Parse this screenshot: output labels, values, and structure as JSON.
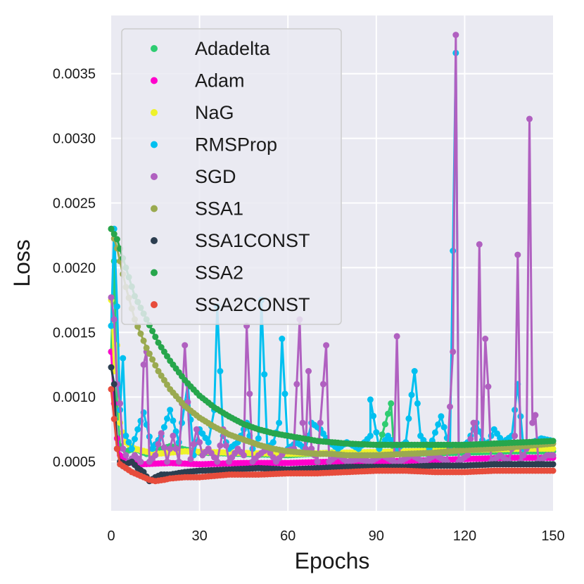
{
  "chart_data": {
    "type": "line",
    "title": "",
    "xlabel": "Epochs",
    "ylabel": "Loss",
    "xlim": [
      0,
      150
    ],
    "ylim": [
      0.00012,
      0.00395
    ],
    "x_ticks": [
      0,
      30,
      60,
      90,
      120,
      150
    ],
    "x_tick_labels": [
      "0",
      "30",
      "60",
      "90",
      "120",
      "150"
    ],
    "y_ticks": [
      0.0005,
      0.001,
      0.0015,
      0.002,
      0.0025,
      0.003,
      0.0035
    ],
    "y_tick_labels": [
      "0.0005",
      "0.0010",
      "0.0015",
      "0.0020",
      "0.0025",
      "0.0030",
      "0.0035"
    ],
    "grid": true,
    "legend_position": "top-left",
    "markers": "circle",
    "series": [
      {
        "name": "Adadelta",
        "color": "#2ecc71",
        "values": [
          [
            0,
            0.00135
          ],
          [
            1,
            0.00205
          ],
          [
            2,
            0.00095
          ],
          [
            3,
            0.00062
          ],
          [
            5,
            0.00058
          ],
          [
            8,
            0.0006
          ],
          [
            12,
            0.00056
          ],
          [
            20,
            0.00062
          ],
          [
            30,
            0.00057
          ],
          [
            45,
            0.00056
          ],
          [
            60,
            0.00055
          ],
          [
            75,
            0.00057
          ],
          [
            90,
            0.00055
          ],
          [
            95,
            0.00095
          ],
          [
            96,
            0.0006
          ],
          [
            100,
            0.00056
          ],
          [
            120,
            0.00057
          ],
          [
            135,
            0.00058
          ],
          [
            150,
            0.00058
          ]
        ]
      },
      {
        "name": "Adam",
        "color": "#ff00cc",
        "values": [
          [
            0,
            0.00135
          ],
          [
            1,
            0.00095
          ],
          [
            2,
            0.00068
          ],
          [
            3,
            0.00055
          ],
          [
            5,
            0.0005
          ],
          [
            10,
            0.00048
          ],
          [
            20,
            0.00049
          ],
          [
            30,
            0.00048
          ],
          [
            45,
            0.00049
          ],
          [
            60,
            0.00049
          ],
          [
            75,
            0.0005
          ],
          [
            90,
            0.0005
          ],
          [
            105,
            0.00051
          ],
          [
            120,
            0.00052
          ],
          [
            135,
            0.00053
          ],
          [
            150,
            0.00053
          ]
        ]
      },
      {
        "name": "NaG",
        "color": "#eef22a",
        "values": [
          [
            0,
            0.00175
          ],
          [
            1,
            0.0012
          ],
          [
            2,
            0.0014
          ],
          [
            3,
            0.0008
          ],
          [
            5,
            0.00065
          ],
          [
            8,
            0.0006
          ],
          [
            15,
            0.00056
          ],
          [
            25,
            0.00058
          ],
          [
            40,
            0.00057
          ],
          [
            60,
            0.00056
          ],
          [
            80,
            0.00057
          ],
          [
            100,
            0.00058
          ],
          [
            120,
            0.00059
          ],
          [
            140,
            0.0006
          ],
          [
            150,
            0.0006
          ]
        ]
      },
      {
        "name": "RMSProp",
        "color": "#00c0f0",
        "values": [
          [
            0,
            0.00155
          ],
          [
            1,
            0.0023
          ],
          [
            2,
            0.0017
          ],
          [
            3,
            0.0009
          ],
          [
            4,
            0.0013
          ],
          [
            5,
            0.0007
          ],
          [
            7,
            0.0006
          ],
          [
            9,
            0.00075
          ],
          [
            11,
            0.00088
          ],
          [
            14,
            0.0006
          ],
          [
            17,
            0.0007
          ],
          [
            20,
            0.0009
          ],
          [
            23,
            0.00065
          ],
          [
            26,
            0.0011
          ],
          [
            28,
            0.00055
          ],
          [
            30,
            0.00075
          ],
          [
            33,
            0.00065
          ],
          [
            35,
            0.0009
          ],
          [
            36,
            0.0017
          ],
          [
            38,
            0.0007
          ],
          [
            40,
            0.0006
          ],
          [
            43,
            0.00065
          ],
          [
            46,
            0.0008
          ],
          [
            48,
            0.0006
          ],
          [
            50,
            0.00068
          ],
          [
            51,
            0.00175
          ],
          [
            53,
            0.0006
          ],
          [
            55,
            0.00065
          ],
          [
            57,
            0.0008
          ],
          [
            58,
            0.00145
          ],
          [
            60,
            0.0006
          ],
          [
            63,
            0.00065
          ],
          [
            66,
            0.0006
          ],
          [
            68,
            0.0008
          ],
          [
            71,
            0.00075
          ],
          [
            74,
            0.00065
          ],
          [
            77,
            0.0006
          ],
          [
            80,
            0.00065
          ],
          [
            84,
            0.0006
          ],
          [
            88,
            0.0007
          ],
          [
            88,
            0.00098
          ],
          [
            91,
            0.0006
          ],
          [
            94,
            0.0007
          ],
          [
            97,
            0.0006
          ],
          [
            100,
            0.00065
          ],
          [
            103,
            0.0012
          ],
          [
            105,
            0.0007
          ],
          [
            108,
            0.0006
          ],
          [
            112,
            0.00085
          ],
          [
            115,
            0.0006
          ],
          [
            117,
            0.00366
          ],
          [
            118,
            0.0006
          ],
          [
            121,
            0.00065
          ],
          [
            124,
            0.0008
          ],
          [
            127,
            0.0006
          ],
          [
            130,
            0.00075
          ],
          [
            133,
            0.00065
          ],
          [
            136,
            0.0007
          ],
          [
            138,
            0.0011
          ],
          [
            140,
            0.0006
          ],
          [
            143,
            0.00065
          ],
          [
            146,
            0.00068
          ],
          [
            150,
            0.00066
          ]
        ]
      },
      {
        "name": "SGD",
        "color": "#b060c0",
        "values": [
          [
            0,
            0.00177
          ],
          [
            1,
            0.0016
          ],
          [
            2,
            0.0011
          ],
          [
            3,
            0.00095
          ],
          [
            4,
            0.0006
          ],
          [
            6,
            0.0005
          ],
          [
            8,
            0.00055
          ],
          [
            10,
            0.0005
          ],
          [
            11,
            0.00125
          ],
          [
            12,
            0.00135
          ],
          [
            13,
            0.0005
          ],
          [
            15,
            0.00055
          ],
          [
            17,
            0.00072
          ],
          [
            19,
            0.0005
          ],
          [
            21,
            0.0007
          ],
          [
            23,
            0.0005
          ],
          [
            25,
            0.0014
          ],
          [
            27,
            0.00052
          ],
          [
            29,
            0.00075
          ],
          [
            31,
            0.00055
          ],
          [
            33,
            0.0006
          ],
          [
            36,
            0.0005
          ],
          [
            38,
            0.00075
          ],
          [
            40,
            0.0005
          ],
          [
            43,
            0.0006
          ],
          [
            45,
            0.00055
          ],
          [
            46,
            0.00155
          ],
          [
            48,
            0.0005
          ],
          [
            50,
            0.00055
          ],
          [
            53,
            0.0006
          ],
          [
            56,
            0.0005
          ],
          [
            59,
            0.00058
          ],
          [
            62,
            0.0006
          ],
          [
            63,
            0.0011
          ],
          [
            64,
            0.0016
          ],
          [
            65,
            0.0008
          ],
          [
            66,
            0.0006
          ],
          [
            67,
            0.0012
          ],
          [
            68,
            0.0006
          ],
          [
            70,
            0.0005
          ],
          [
            73,
            0.0014
          ],
          [
            74,
            0.0005
          ],
          [
            77,
            0.00055
          ],
          [
            80,
            0.0005
          ],
          [
            84,
            0.00052
          ],
          [
            88,
            0.0005
          ],
          [
            92,
            0.00055
          ],
          [
            96,
            0.0005
          ],
          [
            97,
            0.00147
          ],
          [
            98,
            0.0005
          ],
          [
            102,
            0.00055
          ],
          [
            106,
            0.0005
          ],
          [
            110,
            0.00055
          ],
          [
            114,
            0.0005
          ],
          [
            116,
            0.00135
          ],
          [
            117,
            0.0038
          ],
          [
            118,
            0.0005
          ],
          [
            121,
            0.00055
          ],
          [
            123,
            0.0008
          ],
          [
            124,
            0.0006
          ],
          [
            125,
            0.00218
          ],
          [
            126,
            0.0006
          ],
          [
            127,
            0.00145
          ],
          [
            128,
            0.00108
          ],
          [
            129,
            0.0005
          ],
          [
            132,
            0.00055
          ],
          [
            135,
            0.0005
          ],
          [
            137,
            0.0007
          ],
          [
            138,
            0.0021
          ],
          [
            139,
            0.0005
          ],
          [
            141,
            0.0006
          ],
          [
            142,
            0.00315
          ],
          [
            143,
            0.0008
          ],
          [
            144,
            0.00086
          ],
          [
            145,
            0.0005
          ],
          [
            148,
            0.00055
          ],
          [
            150,
            0.00055
          ]
        ]
      },
      {
        "name": "SSA1",
        "color": "#9aaa50",
        "values": [
          [
            0,
            0.0023
          ],
          [
            2,
            0.00215
          ],
          [
            5,
            0.00185
          ],
          [
            8,
            0.0016
          ],
          [
            12,
            0.00138
          ],
          [
            16,
            0.0012
          ],
          [
            20,
            0.00106
          ],
          [
            25,
            0.00093
          ],
          [
            30,
            0.00084
          ],
          [
            35,
            0.00077
          ],
          [
            40,
            0.00071
          ],
          [
            45,
            0.00067
          ],
          [
            50,
            0.00063
          ],
          [
            55,
            0.0006
          ],
          [
            60,
            0.00058
          ],
          [
            65,
            0.00057
          ],
          [
            70,
            0.00056
          ],
          [
            75,
            0.00056
          ],
          [
            80,
            0.00055
          ],
          [
            90,
            0.00055
          ],
          [
            100,
            0.00056
          ],
          [
            110,
            0.00057
          ],
          [
            120,
            0.00059
          ],
          [
            130,
            0.0006
          ],
          [
            140,
            0.00062
          ],
          [
            150,
            0.00064
          ]
        ]
      },
      {
        "name": "SSA1CONST",
        "color": "#2c3e50",
        "values": [
          [
            0,
            0.00123
          ],
          [
            1,
            0.0011
          ],
          [
            2,
            0.0006
          ],
          [
            3,
            0.0005
          ],
          [
            5,
            0.00048
          ],
          [
            7,
            0.0005
          ],
          [
            9,
            0.00045
          ],
          [
            11,
            0.00042
          ],
          [
            13,
            0.00035
          ],
          [
            15,
            0.00038
          ],
          [
            17,
            0.0004
          ],
          [
            20,
            0.0004
          ],
          [
            25,
            0.00042
          ],
          [
            30,
            0.00043
          ],
          [
            40,
            0.00044
          ],
          [
            50,
            0.00045
          ],
          [
            60,
            0.00044
          ],
          [
            70,
            0.00045
          ],
          [
            80,
            0.00046
          ],
          [
            90,
            0.00046
          ],
          [
            100,
            0.00046
          ],
          [
            110,
            0.00047
          ],
          [
            120,
            0.00047
          ],
          [
            130,
            0.00048
          ],
          [
            140,
            0.00048
          ],
          [
            150,
            0.00048
          ]
        ]
      },
      {
        "name": "SSA2",
        "color": "#27a64c",
        "values": [
          [
            0,
            0.0023
          ],
          [
            2,
            0.00222
          ],
          [
            5,
            0.002
          ],
          [
            8,
            0.00178
          ],
          [
            12,
            0.0016
          ],
          [
            16,
            0.00142
          ],
          [
            20,
            0.00128
          ],
          [
            25,
            0.00113
          ],
          [
            30,
            0.00101
          ],
          [
            35,
            0.00092
          ],
          [
            40,
            0.00085
          ],
          [
            45,
            0.00079
          ],
          [
            50,
            0.00075
          ],
          [
            55,
            0.00072
          ],
          [
            60,
            0.0007
          ],
          [
            65,
            0.00068
          ],
          [
            70,
            0.00066
          ],
          [
            75,
            0.00065
          ],
          [
            80,
            0.00064
          ],
          [
            90,
            0.00063
          ],
          [
            100,
            0.00063
          ],
          [
            110,
            0.00063
          ],
          [
            120,
            0.00063
          ],
          [
            130,
            0.00064
          ],
          [
            140,
            0.00065
          ],
          [
            150,
            0.00066
          ]
        ]
      },
      {
        "name": "SSA2CONST",
        "color": "#e74c3c",
        "values": [
          [
            0,
            0.00106
          ],
          [
            1,
            0.00083
          ],
          [
            2,
            0.0006
          ],
          [
            3,
            0.00048
          ],
          [
            5,
            0.00045
          ],
          [
            7,
            0.00042
          ],
          [
            9,
            0.0004
          ],
          [
            11,
            0.00038
          ],
          [
            13,
            0.00036
          ],
          [
            15,
            0.00035
          ],
          [
            18,
            0.00036
          ],
          [
            20,
            0.00037
          ],
          [
            25,
            0.00038
          ],
          [
            30,
            0.00038
          ],
          [
            40,
            0.0004
          ],
          [
            50,
            0.0004
          ],
          [
            60,
            0.00041
          ],
          [
            70,
            0.00041
          ],
          [
            80,
            0.00042
          ],
          [
            90,
            0.00043
          ],
          [
            100,
            0.00043
          ],
          [
            110,
            0.00042
          ],
          [
            120,
            0.00042
          ],
          [
            130,
            0.00043
          ],
          [
            140,
            0.00043
          ],
          [
            150,
            0.00043
          ]
        ]
      }
    ]
  }
}
